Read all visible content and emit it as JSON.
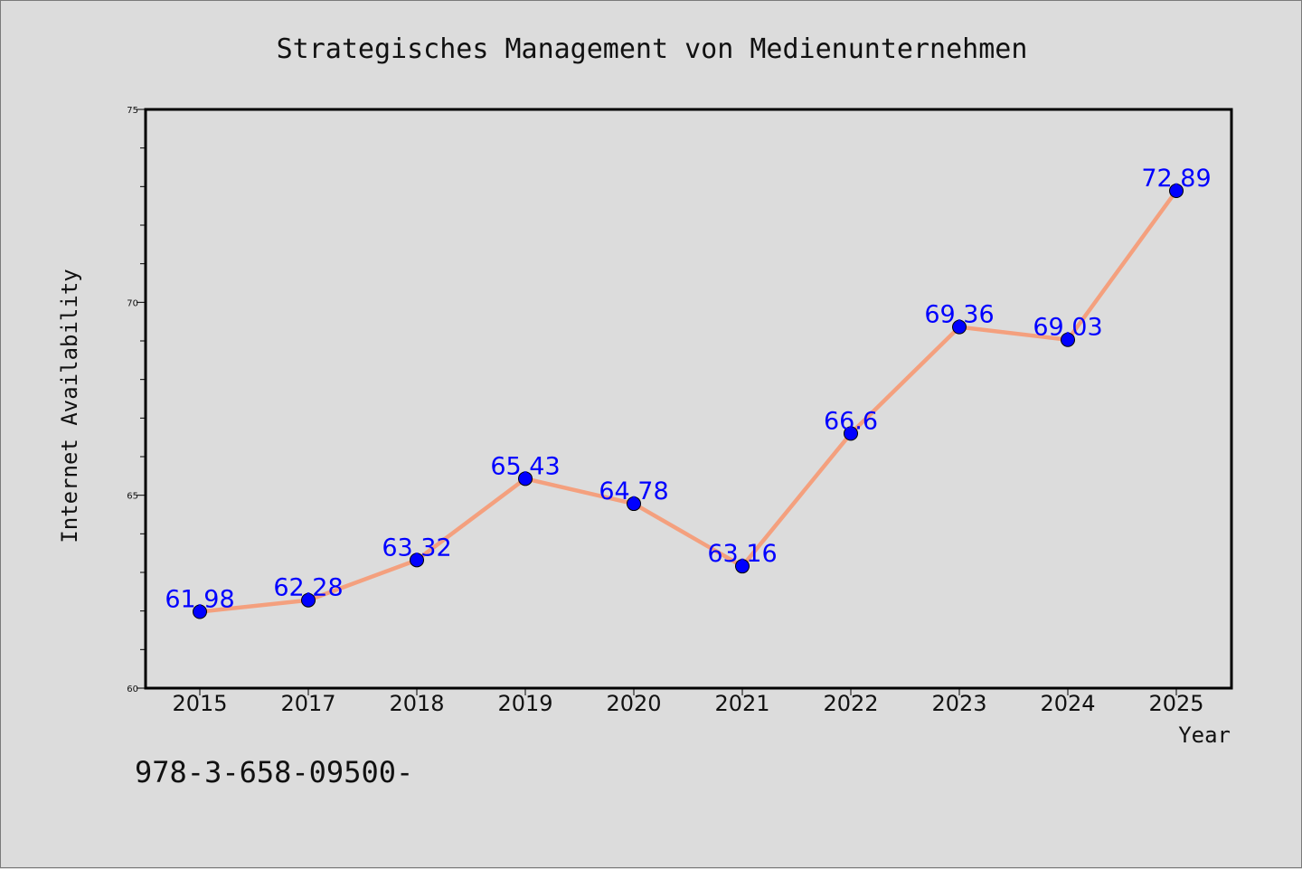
{
  "chart_data": {
    "type": "line",
    "title": "Strategisches Management von Medienunternehmen",
    "xlabel": "Year",
    "ylabel": "Internet Availability",
    "categories": [
      "2015",
      "2017",
      "2018",
      "2019",
      "2020",
      "2021",
      "2022",
      "2023",
      "2024",
      "2025"
    ],
    "values": [
      61.98,
      62.28,
      63.32,
      65.43,
      64.78,
      63.16,
      66.6,
      69.36,
      69.03,
      72.89
    ],
    "data_labels": [
      "61.98",
      "62.28",
      "63.32",
      "65.43",
      "64.78",
      "63.16",
      "66.6",
      "69.36",
      "69.03",
      "72.89"
    ],
    "ylim": [
      60,
      75
    ],
    "yticks": [
      "60",
      "65",
      "70",
      "75"
    ],
    "grid": false,
    "line_color": "#f4a07e",
    "marker_color": "#0000ff",
    "label_color": "#0000ff"
  },
  "footnote": "978-3-658-09500-"
}
